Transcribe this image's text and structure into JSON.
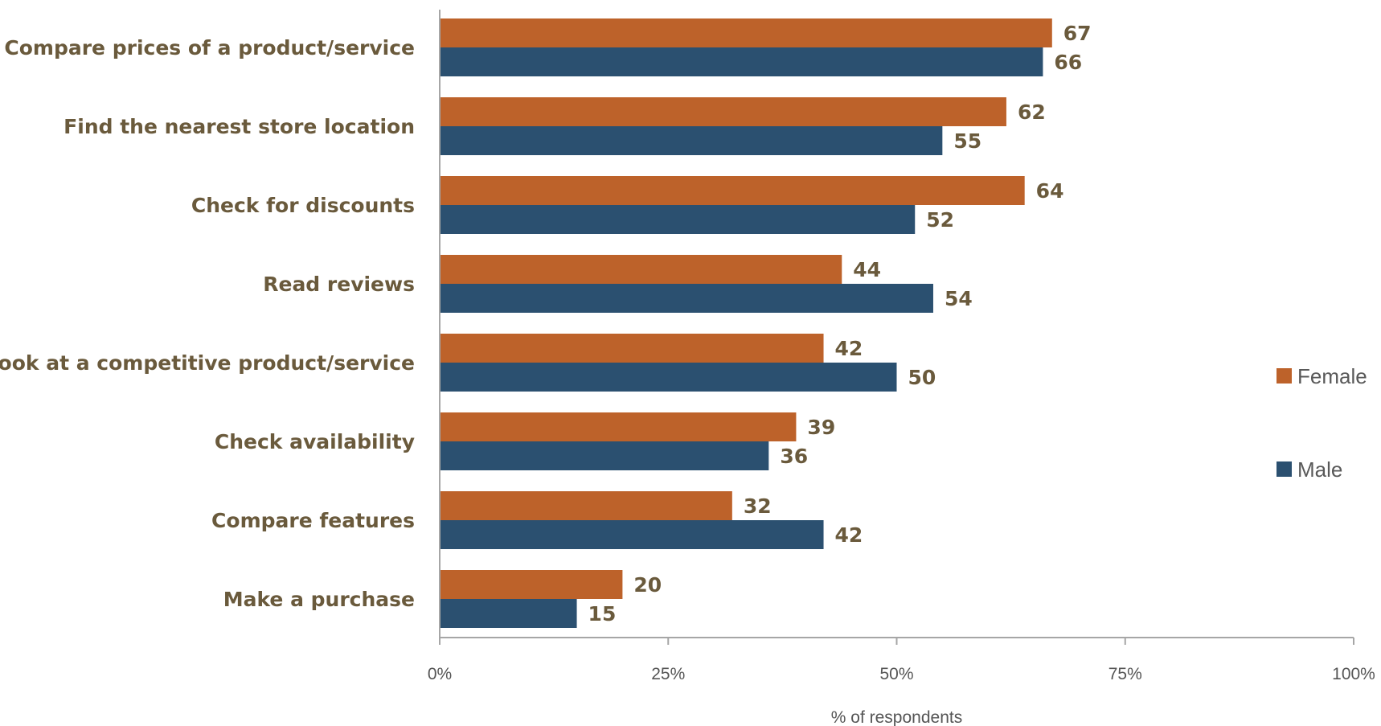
{
  "chart_data": {
    "type": "bar",
    "orientation": "horizontal",
    "categories": [
      "Compare prices of a product/service",
      "Find the nearest store location",
      "Check for discounts",
      "Read reviews",
      "Look at a competitive product/service",
      "Check availability",
      "Compare features",
      "Make a purchase"
    ],
    "series": [
      {
        "name": "Female",
        "color": "#bd622a",
        "values": [
          67,
          62,
          64,
          44,
          42,
          39,
          32,
          20
        ]
      },
      {
        "name": "Male",
        "color": "#2b5070",
        "values": [
          66,
          55,
          52,
          54,
          50,
          36,
          42,
          15
        ]
      }
    ],
    "xlabel": "% of  respondents",
    "ylabel": "",
    "xlim": [
      0,
      100
    ],
    "xticks": [
      0,
      25,
      50,
      75,
      100
    ],
    "xtick_labels": [
      "0%",
      "25%",
      "50%",
      "75%",
      "100%"
    ],
    "grid": false,
    "legend_position": "right",
    "data_labels": true,
    "text_color": "#6a5a3c",
    "axis_color": "#a6a6a6"
  }
}
